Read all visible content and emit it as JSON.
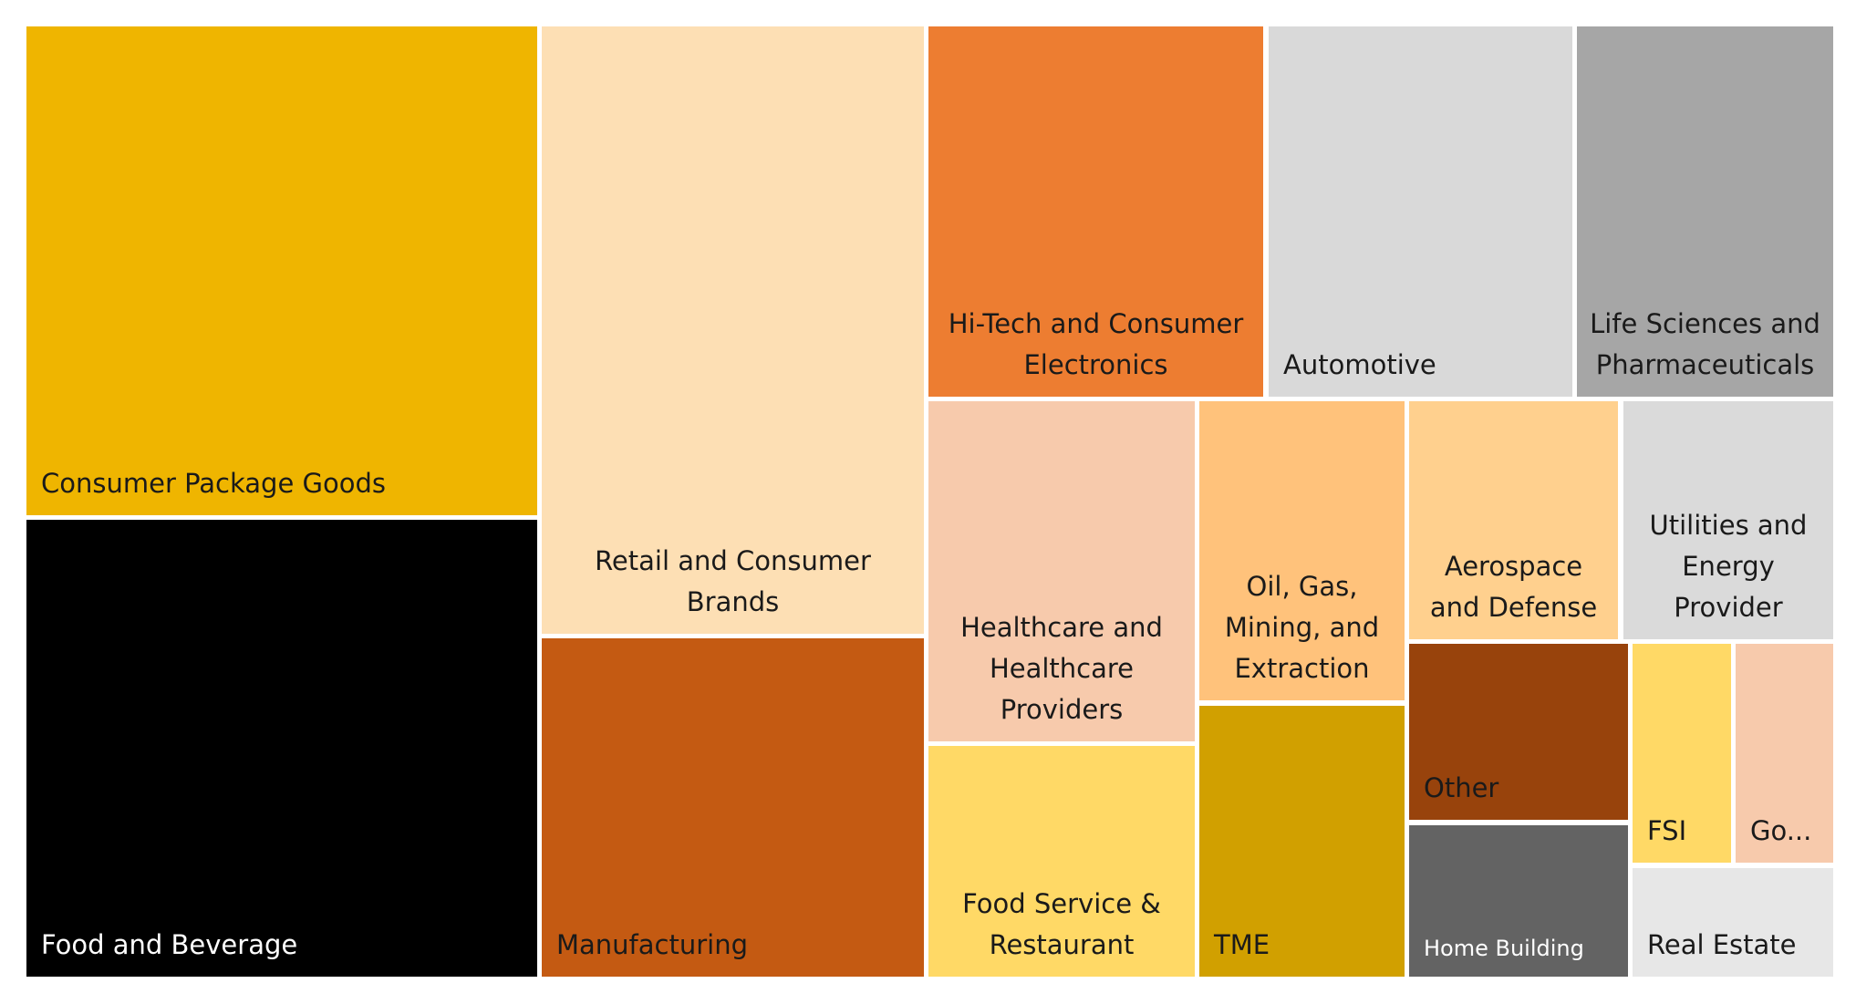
{
  "chart_data": {
    "type": "treemap",
    "title": "",
    "items": [
      {
        "label": "Consumer Package Goods",
        "color": "#EFB500",
        "text_color": "#1a1a1a",
        "align": "left"
      },
      {
        "label": "Food and Beverage",
        "color": "#000000",
        "text_color": "#ffffff",
        "align": "left"
      },
      {
        "label": "Retail and Consumer Brands",
        "color": "#FDDFB4",
        "text_color": "#1a1a1a",
        "align": "center"
      },
      {
        "label": "Manufacturing",
        "color": "#C45A12",
        "text_color": "#1a1a1a",
        "align": "left"
      },
      {
        "label": "Hi-Tech and Consumer Electronics",
        "color": "#ED7D31",
        "text_color": "#1a1a1a",
        "align": "center"
      },
      {
        "label": "Automotive",
        "color": "#D9D9D9",
        "text_color": "#1a1a1a",
        "align": "left"
      },
      {
        "label": "Life Sciences and Pharmaceuticals",
        "color": "#A6A6A6",
        "text_color": "#1a1a1a",
        "align": "center"
      },
      {
        "label": "Healthcare and Healthcare Providers",
        "color": "#F7CAAC",
        "text_color": "#1a1a1a",
        "align": "center"
      },
      {
        "label": "Food Service & Restaurant",
        "color": "#FFD966",
        "text_color": "#1a1a1a",
        "align": "center"
      },
      {
        "label": "Oil, Gas, Mining, and Extraction",
        "color": "#FFC27B",
        "text_color": "#1a1a1a",
        "align": "center"
      },
      {
        "label": "TME",
        "color": "#D1A000",
        "text_color": "#1a1a1a",
        "align": "left"
      },
      {
        "label": "Aerospace and Defense",
        "color": "#FFD08E",
        "text_color": "#1a1a1a",
        "align": "center"
      },
      {
        "label": "Utilities and Energy Provider",
        "color": "#DADADA",
        "text_color": "#1a1a1a",
        "align": "center"
      },
      {
        "label": "Other",
        "color": "#98430C",
        "text_color": "#1a1a1a",
        "align": "left"
      },
      {
        "label": "Home Building",
        "color": "#636363",
        "text_color": "#ffffff",
        "align": "left",
        "size": "small"
      },
      {
        "label": "FSI",
        "color": "#FFD966",
        "text_color": "#1a1a1a",
        "align": "left"
      },
      {
        "label": "Go...",
        "color": "#F7CAAC",
        "text_color": "#1a1a1a",
        "align": "left"
      },
      {
        "label": "Real Estate",
        "color": "#E7E7E7",
        "text_color": "#1a1a1a",
        "align": "left"
      }
    ]
  }
}
